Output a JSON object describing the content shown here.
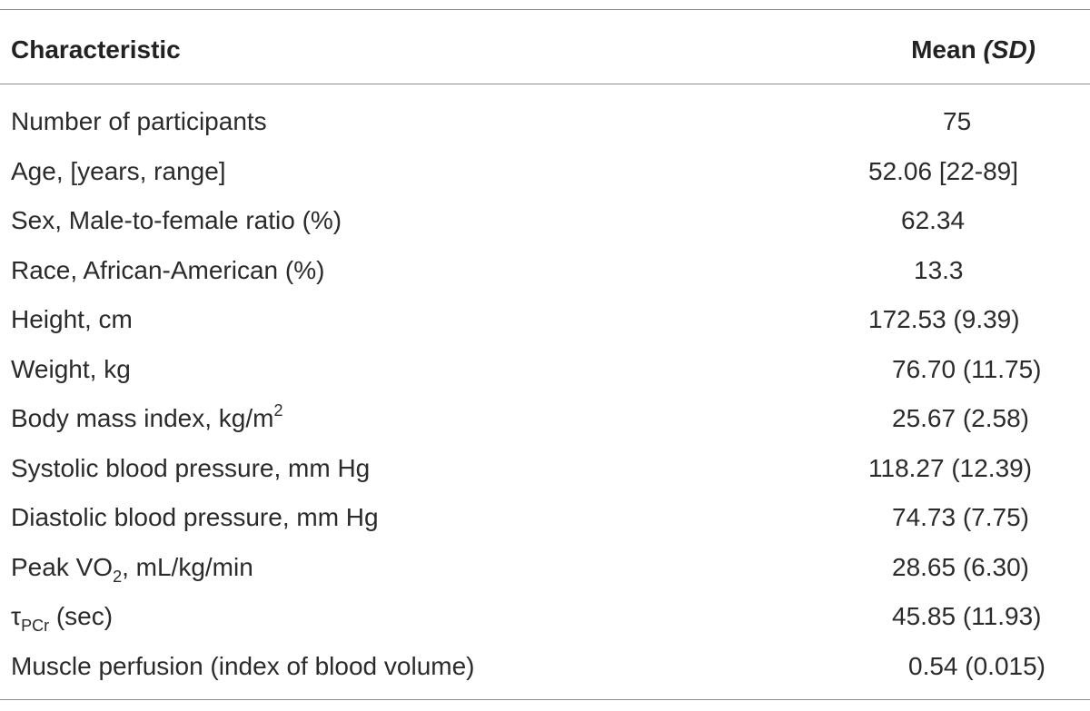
{
  "table": {
    "header": {
      "characteristic": "Characteristic",
      "mean": "Mean",
      "sd": "(SD)"
    },
    "rows": [
      {
        "label": "Number of participants",
        "value": "75"
      },
      {
        "label": "Age, [years, range]",
        "value": "52.06 [22-89]"
      },
      {
        "label": "Sex, Male-to-female ratio (%)",
        "value": "62.34"
      },
      {
        "label": "Race, African-American (%)",
        "value": "13.3"
      },
      {
        "label": "Height, cm",
        "value": "172.53 (9.39)"
      },
      {
        "label": "Weight, kg",
        "value": "76.70 (11.75)"
      },
      {
        "label_pre": "Body mass index, kg/m",
        "label_sup": "2",
        "value": "25.67 (2.58)"
      },
      {
        "label": "Systolic blood pressure, mm Hg",
        "value": "118.27 (12.39)"
      },
      {
        "label": "Diastolic blood pressure, mm Hg",
        "value": "74.73 (7.75)"
      },
      {
        "label_pre": "Peak VO",
        "label_sub": "2",
        "label_post": ", mL/kg/min",
        "value": "28.65 (6.30)"
      },
      {
        "label_pre": "τ",
        "label_sub": "PCr",
        "label_post": " (sec)",
        "value": "45.85 (11.93)"
      },
      {
        "label": "Muscle perfusion (index of blood volume)",
        "value": "0.54 (0.015)"
      }
    ]
  }
}
